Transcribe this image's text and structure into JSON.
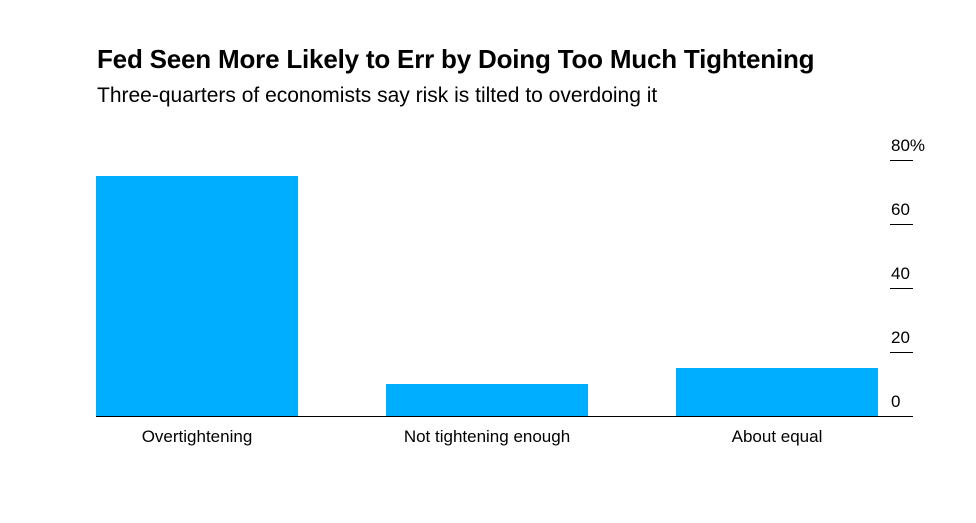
{
  "chart_data": {
    "type": "bar",
    "title": "Fed Seen More Likely to Err by Doing Too Much Tightening",
    "subtitle": "Three-quarters of economists say risk is tilted to overdoing it",
    "categories": [
      "Overtightening",
      "Not tightening enough",
      "About equal"
    ],
    "values": [
      75,
      10,
      15
    ],
    "ylim": [
      0,
      80
    ],
    "yticks": [
      0,
      20,
      40,
      60,
      80
    ],
    "ytick_labels": [
      "0",
      "20",
      "40",
      "60",
      "80%"
    ],
    "y_axis_position": "right",
    "grid": false,
    "bar_color": "#00aeff"
  }
}
